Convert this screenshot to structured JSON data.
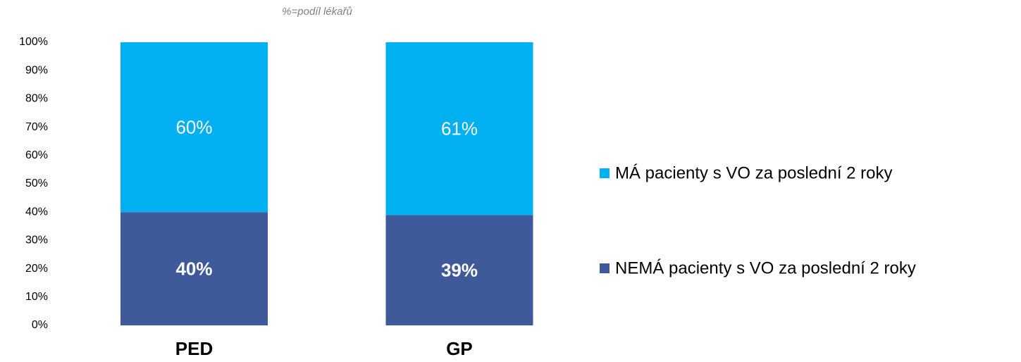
{
  "chart_data": {
    "type": "stacked_bar",
    "subtitle": "%=podíl lékařů",
    "categories": [
      "PED",
      "GP"
    ],
    "series": [
      {
        "name": "NEMÁ pacienty s VO za poslední 2 roky",
        "color": "#3f5a9a",
        "values": [
          40,
          39
        ],
        "value_labels": [
          "40%",
          "39%"
        ]
      },
      {
        "name": "MÁ pacienty s VO za poslední 2 roky",
        "color": "#00b0f0",
        "values": [
          60,
          61
        ],
        "value_labels": [
          "60%",
          "61%"
        ]
      }
    ],
    "ylim": [
      0,
      100
    ],
    "yticks": [
      {
        "value": 0,
        "label": "0%"
      },
      {
        "value": 10,
        "label": "10%"
      },
      {
        "value": 20,
        "label": "20%"
      },
      {
        "value": 30,
        "label": "30%"
      },
      {
        "value": 40,
        "label": "40%"
      },
      {
        "value": 50,
        "label": "50%"
      },
      {
        "value": 60,
        "label": "60%"
      },
      {
        "value": 70,
        "label": "70%"
      },
      {
        "value": 80,
        "label": "80%"
      },
      {
        "value": 90,
        "label": "90%"
      },
      {
        "value": 100,
        "label": "100%"
      }
    ],
    "legend": "right"
  }
}
